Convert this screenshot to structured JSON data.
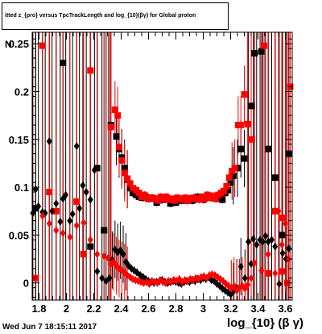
{
  "title": "itted z_{pro} versus TpcTrackLength and log_{10}(βγ) for Global proton",
  "timestamp": "Wed Jun  7 18:15:11 2017",
  "chart_data": {
    "type": "scatter",
    "title": "itted z_{pro} versus TpcTrackLength and log_{10}(βγ) for Global proton",
    "xlabel": "log_{10} (β γ)",
    "ylabel": "N",
    "xlim": [
      1.75,
      3.65
    ],
    "ylim": [
      -0.018,
      0.262
    ],
    "x_ticks": [
      "1.8",
      "2",
      "2.2",
      "2.4",
      "2.6",
      "2.8",
      "3",
      "3.2",
      "3.4",
      "3.6"
    ],
    "y_ticks": [
      "0",
      "0.05",
      "0.1",
      "0.15",
      "0.2",
      "0.25"
    ],
    "colors": {
      "black_series": "#000000",
      "red_series": "#ff0000",
      "axes": "#000000"
    },
    "series": [
      {
        "marker": "square",
        "color": "#000000",
        "points": [
          [
            1.775,
            0.078
          ],
          [
            1.975,
            0.23
          ],
          [
            2.175,
            0.038
          ],
          [
            2.225,
            0.12
          ],
          [
            2.275,
            0.055
          ],
          [
            2.325,
            0.165
          ],
          [
            2.365,
            0.153
          ],
          [
            2.385,
            0.14
          ],
          [
            2.405,
            0.131
          ],
          [
            2.425,
            0.12
          ],
          [
            2.445,
            0.108
          ],
          [
            2.465,
            0.099
          ],
          [
            2.485,
            0.094
          ],
          [
            2.51,
            0.092
          ],
          [
            2.53,
            0.09
          ],
          [
            2.555,
            0.089
          ],
          [
            2.58,
            0.09
          ],
          [
            2.6,
            0.088
          ],
          [
            2.62,
            0.089
          ],
          [
            2.64,
            0.088
          ],
          [
            2.66,
            0.084
          ],
          [
            2.68,
            0.088
          ],
          [
            2.7,
            0.087
          ],
          [
            2.72,
            0.088
          ],
          [
            2.74,
            0.087
          ],
          [
            2.76,
            0.083
          ],
          [
            2.78,
            0.085
          ],
          [
            2.8,
            0.084
          ],
          [
            2.82,
            0.087
          ],
          [
            2.84,
            0.086
          ],
          [
            2.86,
            0.088
          ],
          [
            2.88,
            0.086
          ],
          [
            2.9,
            0.088
          ],
          [
            2.92,
            0.086
          ],
          [
            2.94,
            0.089
          ],
          [
            2.96,
            0.09
          ],
          [
            2.98,
            0.088
          ],
          [
            3.0,
            0.087
          ],
          [
            3.02,
            0.09
          ],
          [
            3.04,
            0.091
          ],
          [
            3.06,
            0.089
          ],
          [
            3.08,
            0.09
          ],
          [
            3.1,
            0.088
          ],
          [
            3.12,
            0.089
          ],
          [
            3.14,
            0.087
          ],
          [
            3.16,
            0.094
          ],
          [
            3.18,
            0.097
          ],
          [
            3.2,
            0.105
          ],
          [
            3.22,
            0.112
          ],
          [
            3.25,
            0.12
          ],
          [
            3.275,
            0.14
          ],
          [
            3.3,
            0.13
          ],
          [
            3.35,
            0.185
          ],
          [
            3.375,
            0.24
          ],
          [
            3.425,
            0.242
          ],
          [
            3.475,
            0.14
          ],
          [
            3.525,
            0.11
          ],
          [
            3.575,
            0.05
          ],
          [
            3.625,
            0.135
          ]
        ]
      },
      {
        "marker": "square",
        "color": "#ff0000",
        "points": [
          [
            1.775,
            0.005
          ],
          [
            1.825,
            0.248
          ],
          [
            1.875,
            0.095
          ],
          [
            1.925,
            0.075
          ],
          [
            2.075,
            0.085
          ],
          [
            2.125,
            0.03
          ],
          [
            2.175,
            0.222
          ],
          [
            2.325,
            0.163
          ],
          [
            2.355,
            0.181
          ],
          [
            2.375,
            0.175
          ],
          [
            2.385,
            0.142
          ],
          [
            2.405,
            0.128
          ],
          [
            2.425,
            0.115
          ],
          [
            2.445,
            0.109
          ],
          [
            2.465,
            0.104
          ],
          [
            2.485,
            0.099
          ],
          [
            2.51,
            0.097
          ],
          [
            2.53,
            0.094
          ],
          [
            2.55,
            0.09
          ],
          [
            2.57,
            0.092
          ],
          [
            2.59,
            0.089
          ],
          [
            2.61,
            0.088
          ],
          [
            2.63,
            0.089
          ],
          [
            2.65,
            0.088
          ],
          [
            2.67,
            0.086
          ],
          [
            2.69,
            0.09
          ],
          [
            2.71,
            0.088
          ],
          [
            2.73,
            0.09
          ],
          [
            2.75,
            0.087
          ],
          [
            2.77,
            0.088
          ],
          [
            2.79,
            0.086
          ],
          [
            2.81,
            0.089
          ],
          [
            2.83,
            0.088
          ],
          [
            2.85,
            0.087
          ],
          [
            2.87,
            0.089
          ],
          [
            2.89,
            0.086
          ],
          [
            2.91,
            0.088
          ],
          [
            2.93,
            0.089
          ],
          [
            2.95,
            0.088
          ],
          [
            2.97,
            0.087
          ],
          [
            2.99,
            0.09
          ],
          [
            3.01,
            0.088
          ],
          [
            3.03,
            0.092
          ],
          [
            3.05,
            0.089
          ],
          [
            3.07,
            0.091
          ],
          [
            3.09,
            0.088
          ],
          [
            3.11,
            0.092
          ],
          [
            3.13,
            0.094
          ],
          [
            3.15,
            0.096
          ],
          [
            3.17,
            0.101
          ],
          [
            3.19,
            0.11
          ],
          [
            3.21,
            0.117
          ],
          [
            3.23,
            0.12
          ],
          [
            3.255,
            0.165
          ],
          [
            3.275,
            0.165
          ],
          [
            3.3,
            0.197
          ],
          [
            3.325,
            0.166
          ],
          [
            3.35,
            0.15
          ],
          [
            3.445,
            0.248
          ],
          [
            3.525,
            0.075
          ],
          [
            3.575,
            0.068
          ],
          [
            3.615,
            0.0
          ],
          [
            3.635,
            0.205
          ],
          [
            3.575,
            0.012
          ],
          [
            3.475,
            0.01
          ]
        ]
      },
      {
        "marker": "diamond",
        "color": "#000000",
        "points": [
          [
            1.755,
            0.073
          ],
          [
            1.775,
            0.098
          ],
          [
            1.795,
            0.08
          ],
          [
            1.825,
            0.074
          ],
          [
            1.845,
            0.073
          ],
          [
            1.875,
            0.148
          ],
          [
            1.895,
            0.075
          ],
          [
            1.925,
            0.083
          ],
          [
            1.955,
            0.064
          ],
          [
            1.975,
            0.088
          ],
          [
            1.995,
            0.092
          ],
          [
            2.025,
            0.065
          ],
          [
            2.045,
            0.072
          ],
          [
            2.075,
            0.143
          ],
          [
            2.095,
            0.078
          ],
          [
            2.12,
            0.102
          ],
          [
            2.145,
            0.095
          ],
          [
            2.175,
            0.087
          ],
          [
            2.205,
            0.118
          ],
          [
            2.225,
            0.012
          ],
          [
            2.26,
            0.005
          ],
          [
            2.29,
            0.002
          ],
          [
            2.315,
            0.005
          ],
          [
            2.335,
            0.024
          ],
          [
            2.355,
            0.035
          ],
          [
            2.375,
            0.032
          ],
          [
            2.395,
            0.034
          ],
          [
            2.415,
            0.03
          ],
          [
            2.435,
            0.022
          ],
          [
            2.455,
            0.018
          ],
          [
            2.475,
            0.015
          ],
          [
            2.495,
            0.013
          ],
          [
            2.515,
            0.011
          ],
          [
            2.54,
            0.008
          ],
          [
            2.56,
            0.006
          ],
          [
            2.58,
            0.004
          ],
          [
            2.6,
            0.002
          ],
          [
            2.62,
            0.001
          ],
          [
            2.64,
            0.0
          ],
          [
            2.66,
            0.001
          ],
          [
            2.68,
            0.002
          ],
          [
            2.7,
            0.003
          ],
          [
            2.72,
            0.001
          ],
          [
            2.74,
            0.0
          ],
          [
            2.76,
            0.001
          ],
          [
            2.78,
            0.002
          ],
          [
            2.8,
            0.001
          ],
          [
            2.82,
            0.0
          ],
          [
            2.84,
            -0.001
          ],
          [
            2.86,
            0.001
          ],
          [
            2.88,
            0.002
          ],
          [
            2.9,
            0.001
          ],
          [
            2.92,
            0.003
          ],
          [
            2.94,
            0.002
          ],
          [
            2.96,
            0.004
          ],
          [
            2.98,
            0.003
          ],
          [
            3.0,
            0.005
          ],
          [
            3.02,
            0.004
          ],
          [
            3.04,
            0.006
          ],
          [
            3.06,
            0.003
          ],
          [
            3.08,
            0.002
          ],
          [
            3.1,
            -0.001
          ],
          [
            3.12,
            -0.003
          ],
          [
            3.14,
            -0.006
          ],
          [
            3.16,
            -0.008
          ],
          [
            3.18,
            -0.01
          ],
          [
            3.2,
            -0.012
          ],
          [
            3.22,
            -0.009
          ],
          [
            3.245,
            -0.005
          ],
          [
            3.275,
            0.017
          ],
          [
            3.305,
            0.005
          ],
          [
            3.33,
            0.043
          ],
          [
            3.35,
            0.02
          ],
          [
            3.365,
            0.046
          ],
          [
            3.39,
            0.04
          ],
          [
            3.415,
            0.045
          ],
          [
            3.435,
            0.043
          ],
          [
            3.455,
            0.049
          ],
          [
            3.475,
            0.043
          ],
          [
            3.5,
            0.045
          ],
          [
            3.525,
            0.038
          ],
          [
            3.555,
            -0.001
          ],
          [
            3.58,
            0.031
          ],
          [
            3.605,
            0.025
          ],
          [
            3.625,
            0.036
          ]
        ]
      },
      {
        "marker": "diamond",
        "color": "#ff0000",
        "points": [
          [
            1.825,
            0.07
          ],
          [
            1.875,
            0.062
          ],
          [
            1.925,
            0.055
          ],
          [
            1.975,
            0.052
          ],
          [
            2.025,
            0.048
          ],
          [
            2.075,
            0.06
          ],
          [
            2.125,
            0.063
          ],
          [
            2.175,
            0.045
          ],
          [
            2.225,
            0.03
          ],
          [
            2.275,
            0.028
          ],
          [
            2.305,
            0.026
          ],
          [
            2.325,
            0.02
          ],
          [
            2.345,
            0.022
          ],
          [
            2.365,
            0.018
          ],
          [
            2.385,
            0.015
          ],
          [
            2.405,
            0.013
          ],
          [
            2.425,
            0.011
          ],
          [
            2.445,
            0.008
          ],
          [
            2.465,
            0.006
          ],
          [
            2.485,
            0.004
          ],
          [
            2.505,
            0.003
          ],
          [
            2.525,
            0.002
          ],
          [
            2.545,
            0.001
          ],
          [
            2.565,
            0.0
          ],
          [
            2.585,
            0.001
          ],
          [
            2.605,
            -0.001
          ],
          [
            2.625,
            0.002
          ],
          [
            2.645,
            0.001
          ],
          [
            2.665,
            0.0
          ],
          [
            2.685,
            0.003
          ],
          [
            2.705,
            0.001
          ],
          [
            2.725,
            0.0
          ],
          [
            2.745,
            0.002
          ],
          [
            2.765,
            0.001
          ],
          [
            2.785,
            0.003
          ],
          [
            2.805,
            0.002
          ],
          [
            2.825,
            0.004
          ],
          [
            2.845,
            0.001
          ],
          [
            2.865,
            0.003
          ],
          [
            2.885,
            0.002
          ],
          [
            2.905,
            0.004
          ],
          [
            2.925,
            0.003
          ],
          [
            2.945,
            0.005
          ],
          [
            2.965,
            0.004
          ],
          [
            2.985,
            0.006
          ],
          [
            3.005,
            0.007
          ],
          [
            3.025,
            0.005
          ],
          [
            3.045,
            0.008
          ],
          [
            3.065,
            0.009
          ],
          [
            3.085,
            0.008
          ],
          [
            3.105,
            0.006
          ],
          [
            3.125,
            0.004
          ],
          [
            3.145,
            0.002
          ],
          [
            3.165,
            -0.001
          ],
          [
            3.185,
            -0.003
          ],
          [
            3.205,
            -0.006
          ],
          [
            3.225,
            -0.003
          ],
          [
            3.245,
            -0.008
          ],
          [
            3.265,
            -0.005
          ],
          [
            3.285,
            -0.003
          ],
          [
            3.305,
            -0.006
          ],
          [
            3.325,
            -0.002
          ],
          [
            3.35,
            0.005
          ],
          [
            3.375,
            0.021
          ],
          [
            3.425,
            0.013
          ],
          [
            3.475,
            0.03
          ],
          [
            3.525,
            0.01
          ],
          [
            3.55,
            0.075
          ],
          [
            3.575,
            0.04
          ],
          [
            3.6,
            0.062
          ],
          [
            3.625,
            0.025
          ]
        ]
      }
    ]
  }
}
